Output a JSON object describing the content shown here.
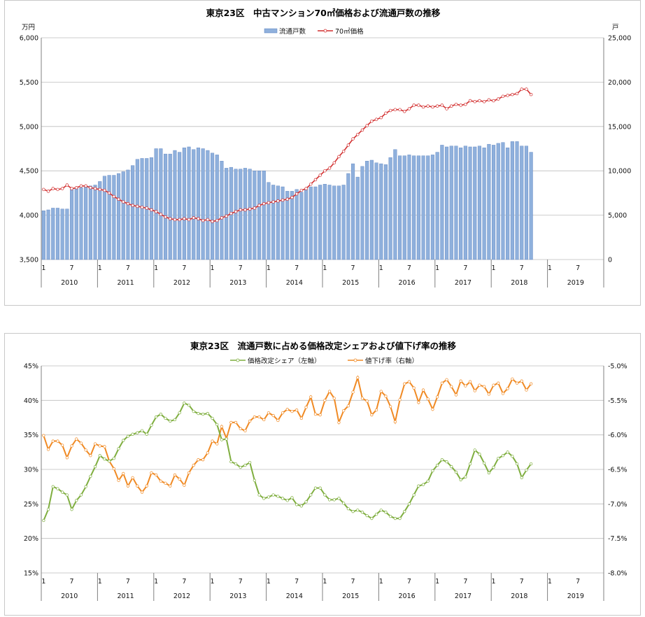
{
  "colors": {
    "bars": "#8fb0dc",
    "bar_edge": "#5b82c0",
    "price_line": "#d22f2f",
    "share_line": "#7fae3f",
    "cut_line": "#f08a24",
    "grid": "#bdbdbd"
  },
  "chart_data": [
    {
      "type": "bar+line",
      "title": "東京23区　中古マンション70㎡価格および流通戸数の推移",
      "left_unit": "万円",
      "right_unit": "戸",
      "y_left_lim": [
        3500,
        6000
      ],
      "y_left_ticks": [
        "6,000",
        "5,500",
        "5,000",
        "4,500",
        "4,000",
        "3,500"
      ],
      "y_right_lim": [
        0,
        25000
      ],
      "y_right_ticks": [
        "25,000",
        "20,000",
        "15,000",
        "10,000",
        "5,000",
        "0"
      ],
      "x_month_labels": [
        "1",
        "7",
        "1",
        "7",
        "1",
        "7",
        "1",
        "7",
        "1",
        "7",
        "1",
        "7",
        "1",
        "7",
        "1",
        "7",
        "1",
        "7",
        "1",
        "7"
      ],
      "x_year_labels": [
        "2010",
        "2011",
        "2012",
        "2013",
        "2014",
        "2015",
        "2016",
        "2017",
        "2018",
        "2019"
      ],
      "grid": "horizontal",
      "legend_position": "top",
      "series": [
        {
          "name": "流通戸数",
          "axis": "right",
          "kind": "bar",
          "values": [
            5500,
            5600,
            5800,
            5800,
            5700,
            5700,
            7900,
            8000,
            8100,
            8200,
            8300,
            8400,
            8800,
            9400,
            9500,
            9500,
            9700,
            9900,
            10100,
            10600,
            11300,
            11400,
            11400,
            11500,
            12500,
            12500,
            11900,
            11900,
            12300,
            12100,
            12600,
            12700,
            12400,
            12600,
            12500,
            12300,
            12000,
            11800,
            11100,
            10300,
            10400,
            10200,
            10200,
            10300,
            10200,
            10000,
            10000,
            10000,
            8700,
            8400,
            8300,
            8200,
            7700,
            7700,
            7900,
            7600,
            7900,
            8200,
            8200,
            8400,
            8500,
            8400,
            8300,
            8300,
            8400,
            9700,
            10800,
            9300,
            10500,
            11100,
            11200,
            10900,
            10800,
            10700,
            11500,
            12400,
            11700,
            11700,
            11800,
            11700,
            11700,
            11700,
            11700,
            11800,
            12100,
            12900,
            12700,
            12800,
            12800,
            12600,
            12800,
            12700,
            12700,
            12800,
            12600,
            13000,
            12900,
            13100,
            13200,
            12600,
            13300,
            13300,
            12800,
            12800,
            12100
          ]
        },
        {
          "name": "70㎡価格",
          "axis": "left",
          "kind": "line",
          "values": [
            4290,
            4270,
            4300,
            4290,
            4300,
            4340,
            4300,
            4310,
            4330,
            4330,
            4310,
            4300,
            4290,
            4280,
            4250,
            4210,
            4180,
            4150,
            4130,
            4110,
            4100,
            4090,
            4080,
            4060,
            4040,
            4010,
            3980,
            3960,
            3950,
            3950,
            3960,
            3950,
            3970,
            3960,
            3940,
            3950,
            3930,
            3940,
            3970,
            3990,
            4020,
            4040,
            4060,
            4060,
            4070,
            4080,
            4110,
            4130,
            4140,
            4150,
            4160,
            4170,
            4180,
            4200,
            4240,
            4280,
            4300,
            4350,
            4400,
            4450,
            4500,
            4530,
            4590,
            4660,
            4720,
            4790,
            4860,
            4910,
            4960,
            5010,
            5060,
            5080,
            5100,
            5150,
            5180,
            5190,
            5190,
            5170,
            5200,
            5240,
            5240,
            5220,
            5230,
            5220,
            5230,
            5240,
            5200,
            5230,
            5250,
            5240,
            5250,
            5290,
            5280,
            5290,
            5280,
            5300,
            5290,
            5310,
            5340,
            5350,
            5360,
            5370,
            5420,
            5420,
            5360
          ]
        }
      ]
    },
    {
      "type": "line",
      "title": "東京23区　流通戸数に占める価格改定シェアおよび値下げ率の推移",
      "y_left_lim": [
        15,
        45
      ],
      "y_left_ticks": [
        "45%",
        "40%",
        "35%",
        "30%",
        "25%",
        "20%",
        "15%"
      ],
      "y_right_lim": [
        -8.0,
        -5.0
      ],
      "y_right_ticks": [
        "-5.0%",
        "-5.5%",
        "-6.0%",
        "-6.5%",
        "-7.0%",
        "-7.5%",
        "-8.0%"
      ],
      "x_month_labels": [
        "1",
        "7",
        "1",
        "7",
        "1",
        "7",
        "1",
        "7",
        "1",
        "7",
        "1",
        "7",
        "1",
        "7",
        "1",
        "7",
        "1",
        "7",
        "1",
        "7"
      ],
      "x_year_labels": [
        "2010",
        "2011",
        "2012",
        "2013",
        "2014",
        "2015",
        "2016",
        "2017",
        "2018",
        "2019"
      ],
      "grid": "horizontal",
      "legend_position": "top",
      "series": [
        {
          "name": "価格改定シェア（左軸）",
          "axis": "left",
          "values": [
            22.6,
            24.2,
            27.5,
            27.2,
            26.7,
            26.3,
            24.2,
            25.5,
            26.3,
            27.5,
            29.0,
            30.4,
            32.0,
            31.5,
            31.2,
            31.6,
            33.0,
            34.2,
            34.8,
            35.1,
            35.3,
            35.6,
            35.1,
            36.4,
            37.6,
            38.0,
            37.4,
            37.0,
            37.2,
            38.2,
            39.6,
            39.3,
            38.4,
            38.1,
            38.0,
            38.1,
            37.4,
            36.5,
            34.3,
            34.4,
            31.1,
            30.8,
            30.3,
            30.6,
            31.0,
            28.4,
            26.3,
            25.8,
            26.0,
            26.3,
            26.1,
            25.8,
            25.5,
            25.9,
            24.9,
            24.7,
            25.3,
            26.3,
            27.3,
            27.3,
            26.3,
            25.6,
            25.6,
            25.8,
            25.1,
            24.3,
            23.9,
            24.1,
            23.8,
            23.3,
            22.9,
            23.5,
            24.1,
            23.8,
            23.2,
            22.9,
            22.9,
            23.9,
            25.0,
            26.3,
            27.6,
            27.8,
            28.3,
            29.8,
            30.6,
            31.4,
            31.1,
            30.4,
            29.6,
            28.5,
            28.9,
            30.8,
            32.8,
            32.2,
            30.9,
            29.5,
            30.3,
            31.6,
            32.0,
            32.5,
            31.9,
            30.8,
            28.8,
            29.9,
            30.8
          ]
        },
        {
          "name": "値下げ率（右軸）",
          "axis": "right",
          "values": [
            -6.01,
            -6.21,
            -6.09,
            -6.09,
            -6.15,
            -6.33,
            -6.16,
            -6.06,
            -6.12,
            -6.22,
            -6.3,
            -6.13,
            -6.16,
            -6.17,
            -6.38,
            -6.49,
            -6.66,
            -6.56,
            -6.74,
            -6.62,
            -6.74,
            -6.83,
            -6.74,
            -6.55,
            -6.58,
            -6.67,
            -6.7,
            -6.74,
            -6.58,
            -6.64,
            -6.73,
            -6.55,
            -6.44,
            -6.36,
            -6.36,
            -6.26,
            -6.09,
            -6.13,
            -5.88,
            -6.05,
            -5.82,
            -5.82,
            -5.91,
            -5.94,
            -5.8,
            -5.74,
            -5.74,
            -5.78,
            -5.68,
            -5.72,
            -5.79,
            -5.68,
            -5.63,
            -5.66,
            -5.64,
            -5.76,
            -5.6,
            -5.45,
            -5.7,
            -5.71,
            -5.5,
            -5.37,
            -5.47,
            -5.82,
            -5.65,
            -5.58,
            -5.38,
            -5.17,
            -5.47,
            -5.51,
            -5.71,
            -5.64,
            -5.37,
            -5.44,
            -5.59,
            -5.81,
            -5.49,
            -5.26,
            -5.23,
            -5.32,
            -5.53,
            -5.35,
            -5.48,
            -5.63,
            -5.45,
            -5.25,
            -5.2,
            -5.3,
            -5.42,
            -5.22,
            -5.29,
            -5.23,
            -5.36,
            -5.28,
            -5.3,
            -5.41,
            -5.28,
            -5.25,
            -5.4,
            -5.33,
            -5.19,
            -5.25,
            -5.22,
            -5.35,
            -5.26
          ]
        }
      ]
    }
  ]
}
